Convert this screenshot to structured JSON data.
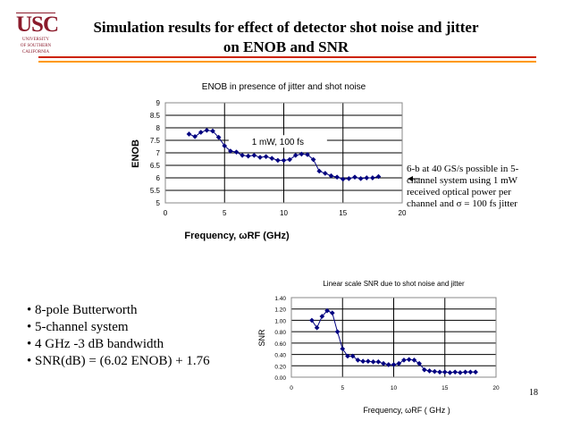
{
  "logo": {
    "text": "USC",
    "subtext": [
      "UNIVERSITY",
      "OF SOUTHERN",
      "CALIFORNIA"
    ]
  },
  "title_line1": "Simulation results for effect of detector shot noise and jitter",
  "title_line2": "on  ENOB and SNR",
  "colors": {
    "series": "#000080",
    "rule_red": "#cc2200",
    "rule_orange": "#ff9900",
    "logo": "#8b1a2b"
  },
  "note": "6-b at 40 GS/s possible in 5-channel system using 1 mW received optical power per channel and σ = 100 fs jitter",
  "bullets": [
    "• 8-pole Butterworth",
    "• 5-channel system",
    "• 4 GHz -3 dB bandwidth",
    "• SNR(dB) = (6.02 ENOB) + 1.76"
  ],
  "page_number": "18",
  "chart_data": [
    {
      "type": "line",
      "title": "ENOB in presence of jitter and shot noise",
      "xlabel": "Frequency, ωRF (GHz)",
      "ylabel": "ENOB",
      "annotation": "1 mW, 100 fs",
      "xlim": [
        0,
        20
      ],
      "ylim": [
        5,
        9
      ],
      "xticks": [
        "0",
        "5",
        "10",
        "15",
        "20"
      ],
      "yticks": [
        "5",
        "5.5",
        "6",
        "6.5",
        "7",
        "7.5",
        "8",
        "8.5",
        "9"
      ],
      "grid": "horizontal and vertical",
      "x": [
        2,
        2.5,
        3,
        3.5,
        4,
        4.5,
        5,
        5.5,
        6,
        6.5,
        7,
        7.5,
        8,
        8.5,
        9,
        9.5,
        10,
        10.5,
        11,
        11.5,
        12,
        12.5,
        13,
        13.5,
        14,
        14.5,
        15,
        15.5,
        16,
        16.5,
        17,
        17.5,
        18
      ],
      "y": [
        7.75,
        7.65,
        7.82,
        7.9,
        7.87,
        7.62,
        7.28,
        7.07,
        7.03,
        6.9,
        6.87,
        6.9,
        6.82,
        6.85,
        6.78,
        6.7,
        6.7,
        6.73,
        6.9,
        6.95,
        6.93,
        6.73,
        6.27,
        6.18,
        6.08,
        6.03,
        5.95,
        5.97,
        6.03,
        5.97,
        6.0,
        6.0,
        6.05
      ]
    },
    {
      "type": "line",
      "title": "Linear scale SNR due to shot noise and jitter",
      "xlabel": "Frequency, ωRF ( GHz )",
      "ylabel": "SNR",
      "xlim": [
        0,
        20
      ],
      "ylim": [
        0,
        1.4
      ],
      "xticks": [
        "0",
        "5",
        "10",
        "15",
        "20"
      ],
      "yticks": [
        "0.00",
        "0.20",
        "0.40",
        "0.60",
        "0.80",
        "1.00",
        "1.20",
        "1.40"
      ],
      "grid": "horizontal and vertical",
      "x": [
        2,
        2.5,
        3,
        3.5,
        4,
        4.5,
        5,
        5.5,
        6,
        6.5,
        7,
        7.5,
        8,
        8.5,
        9,
        9.5,
        10,
        10.5,
        11,
        11.5,
        12,
        12.5,
        13,
        13.5,
        14,
        14.5,
        15,
        15.5,
        16,
        16.5,
        17,
        17.5,
        18
      ],
      "y": [
        1.0,
        0.87,
        1.07,
        1.17,
        1.13,
        0.8,
        0.5,
        0.37,
        0.37,
        0.3,
        0.28,
        0.28,
        0.27,
        0.27,
        0.24,
        0.22,
        0.22,
        0.24,
        0.3,
        0.31,
        0.3,
        0.24,
        0.13,
        0.11,
        0.1,
        0.09,
        0.09,
        0.08,
        0.09,
        0.08,
        0.09,
        0.09,
        0.09
      ]
    }
  ]
}
